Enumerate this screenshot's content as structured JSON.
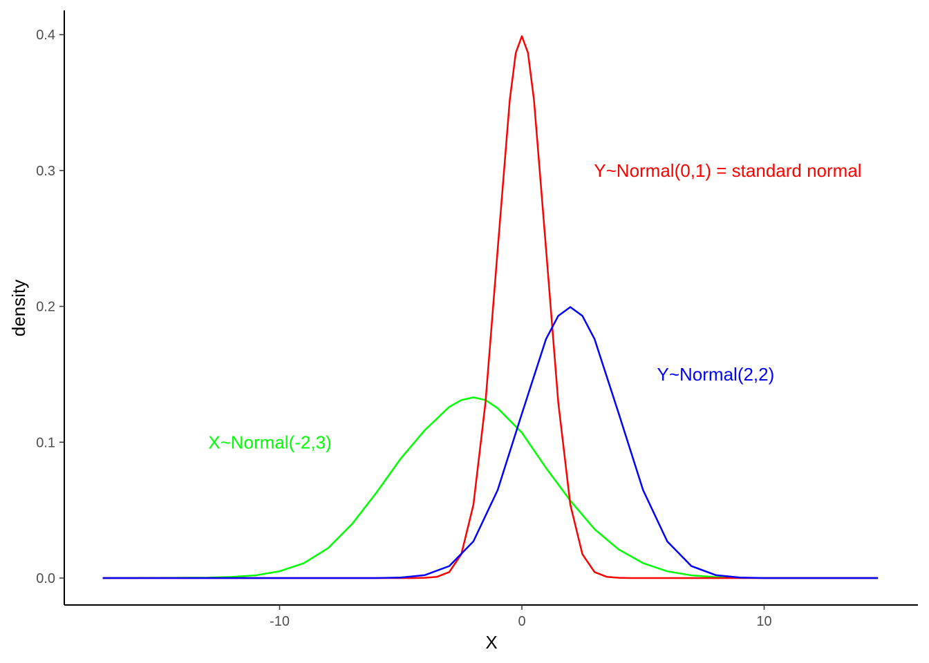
{
  "chart_data": {
    "type": "line",
    "title": "",
    "xlabel": "X",
    "ylabel": "density",
    "xlim": [
      -17.5,
      16.5
    ],
    "ylim": [
      -0.02,
      0.418
    ],
    "x_ticks": [
      -10,
      0,
      10
    ],
    "x_tick_labels": [
      "-10",
      "0",
      "10"
    ],
    "y_ticks": [
      0.0,
      0.1,
      0.2,
      0.3,
      0.4
    ],
    "y_tick_labels": [
      "0.0",
      "0.1",
      "0.2",
      "0.3",
      "0.4"
    ],
    "grid": false,
    "legend": "none",
    "series": [
      {
        "key": "x_normal_m2_3",
        "color": "#00ff00",
        "x_range": [
          -17.3,
          14.7
        ],
        "values": [
          {
            "x": -17.3,
            "y": 0.0
          },
          {
            "x": -13,
            "y": 0.0003
          },
          {
            "x": -12,
            "y": 0.0008
          },
          {
            "x": -11,
            "y": 0.002
          },
          {
            "x": -10,
            "y": 0.005
          },
          {
            "x": -9,
            "y": 0.011
          },
          {
            "x": -8,
            "y": 0.022
          },
          {
            "x": -7,
            "y": 0.04
          },
          {
            "x": -6,
            "y": 0.063
          },
          {
            "x": -5,
            "y": 0.088
          },
          {
            "x": -4,
            "y": 0.109
          },
          {
            "x": -3,
            "y": 0.126
          },
          {
            "x": -2.5,
            "y": 0.131
          },
          {
            "x": -2,
            "y": 0.133
          },
          {
            "x": -1.5,
            "y": 0.131
          },
          {
            "x": -1,
            "y": 0.125
          },
          {
            "x": 0,
            "y": 0.107
          },
          {
            "x": 1,
            "y": 0.081
          },
          {
            "x": 2,
            "y": 0.057
          },
          {
            "x": 3,
            "y": 0.036
          },
          {
            "x": 4,
            "y": 0.021
          },
          {
            "x": 5,
            "y": 0.011
          },
          {
            "x": 6,
            "y": 0.005
          },
          {
            "x": 7,
            "y": 0.002
          },
          {
            "x": 8,
            "y": 0.0007
          },
          {
            "x": 9,
            "y": 0.0002
          },
          {
            "x": 10,
            "y": 0.0
          },
          {
            "x": 14.7,
            "y": 0.0
          }
        ]
      },
      {
        "key": "y_normal_0_1",
        "color": "#ff0000",
        "x_range": [
          -17.3,
          14.7
        ],
        "values": [
          {
            "x": -17.3,
            "y": 0.0
          },
          {
            "x": -4.5,
            "y": 0.0
          },
          {
            "x": -4,
            "y": 0.0002
          },
          {
            "x": -3.5,
            "y": 0.0009
          },
          {
            "x": -3,
            "y": 0.0044
          },
          {
            "x": -2.5,
            "y": 0.0175
          },
          {
            "x": -2,
            "y": 0.054
          },
          {
            "x": -1.5,
            "y": 0.1295
          },
          {
            "x": -1,
            "y": 0.242
          },
          {
            "x": -0.5,
            "y": 0.352
          },
          {
            "x": -0.25,
            "y": 0.3867
          },
          {
            "x": 0,
            "y": 0.3989
          },
          {
            "x": 0.25,
            "y": 0.3867
          },
          {
            "x": 0.5,
            "y": 0.352
          },
          {
            "x": 1,
            "y": 0.242
          },
          {
            "x": 1.5,
            "y": 0.1295
          },
          {
            "x": 2,
            "y": 0.054
          },
          {
            "x": 2.5,
            "y": 0.0175
          },
          {
            "x": 3,
            "y": 0.0044
          },
          {
            "x": 3.5,
            "y": 0.0009
          },
          {
            "x": 4,
            "y": 0.0002
          },
          {
            "x": 4.5,
            "y": 0.0
          },
          {
            "x": 14.7,
            "y": 0.0
          }
        ]
      },
      {
        "key": "y_normal_2_2",
        "color": "#0000ff",
        "x_range": [
          -17.3,
          14.7
        ],
        "values": [
          {
            "x": -17.3,
            "y": 0.0
          },
          {
            "x": -6,
            "y": 0.0
          },
          {
            "x": -5,
            "y": 0.0004
          },
          {
            "x": -4,
            "y": 0.0022
          },
          {
            "x": -3,
            "y": 0.0088
          },
          {
            "x": -2,
            "y": 0.027
          },
          {
            "x": -1,
            "y": 0.0648
          },
          {
            "x": 0,
            "y": 0.121
          },
          {
            "x": 1,
            "y": 0.176
          },
          {
            "x": 1.5,
            "y": 0.193
          },
          {
            "x": 2,
            "y": 0.1995
          },
          {
            "x": 2.5,
            "y": 0.193
          },
          {
            "x": 3,
            "y": 0.176
          },
          {
            "x": 4,
            "y": 0.121
          },
          {
            "x": 5,
            "y": 0.0648
          },
          {
            "x": 6,
            "y": 0.027
          },
          {
            "x": 7,
            "y": 0.0088
          },
          {
            "x": 8,
            "y": 0.0022
          },
          {
            "x": 9,
            "y": 0.0004
          },
          {
            "x": 10,
            "y": 0.0
          },
          {
            "x": 14.7,
            "y": 0.0
          }
        ]
      }
    ],
    "annotations": [
      {
        "key": "label_green",
        "text": "X~Normal(-2,3)",
        "color": "#00ff00",
        "x": -10.4,
        "y": 0.1
      },
      {
        "key": "label_red",
        "text": "Y~Normal(0,1) = standard normal",
        "color": "#ff0000",
        "x": 8.5,
        "y": 0.3
      },
      {
        "key": "label_blue",
        "text": "Y~Normal(2,2)",
        "color": "#0000ff",
        "x": 8.0,
        "y": 0.15
      }
    ]
  }
}
